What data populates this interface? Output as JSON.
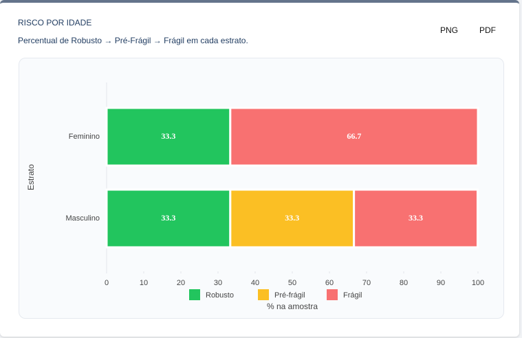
{
  "header": {
    "title": "RISCO POR IDADE",
    "subtitle": "Percentual de Robusto → Pré-Frágil → Frágil em cada estrato.",
    "buttons": [
      "PNG",
      "PDF"
    ]
  },
  "chart_data": {
    "type": "stacked-hbar",
    "xlabel": "% na amostra",
    "ylabel": "Estrato",
    "categories": [
      "Feminino",
      "Masculino"
    ],
    "series": [
      {
        "name": "Robusto",
        "color": "#22c55e",
        "values": [
          33.3,
          33.3
        ]
      },
      {
        "name": "Pré-frágil",
        "color": "#fbbf24",
        "values": [
          0,
          33.3
        ]
      },
      {
        "name": "Frágil",
        "color": "#f87171",
        "values": [
          66.7,
          33.3
        ]
      }
    ],
    "xlim": [
      0,
      100
    ],
    "xticks": [
      0,
      10,
      20,
      30,
      40,
      50,
      60,
      70,
      80,
      90,
      100
    ]
  }
}
